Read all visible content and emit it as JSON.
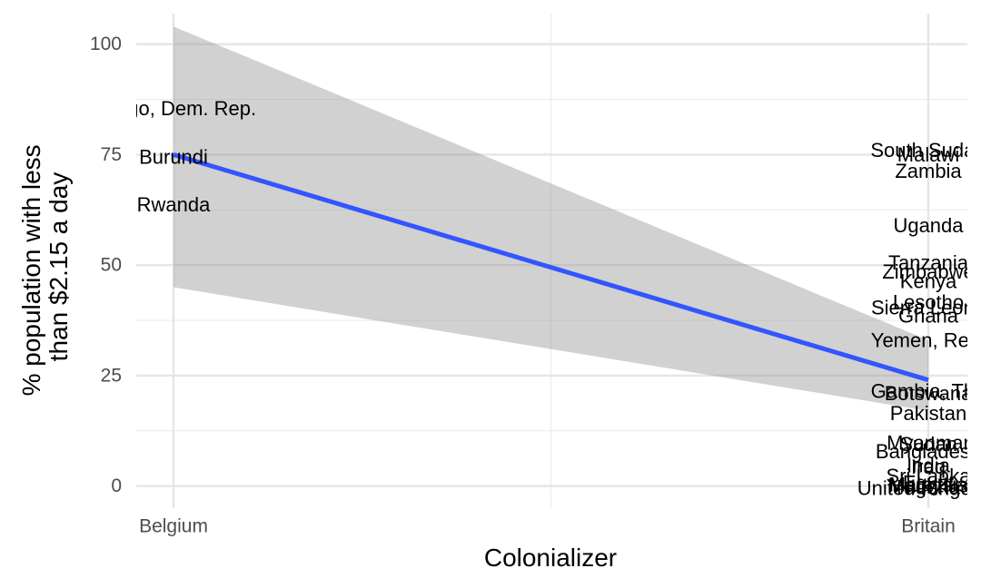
{
  "chart_data": {
    "type": "scatter",
    "title": "",
    "xlabel": "Colonializer",
    "ylabel_lines": [
      "% population with less",
      "than $2.15 a day"
    ],
    "categories": [
      "Belgium",
      "Britain"
    ],
    "ylim": [
      -5,
      110
    ],
    "yticks": [
      0,
      25,
      50,
      75,
      100
    ],
    "ytick_labels": [
      "0",
      "25",
      "50",
      "75",
      "100"
    ],
    "grid": true,
    "trend": {
      "color": "#3355ff",
      "fit": {
        "Belgium": 75,
        "Britain": 24
      },
      "band_lower": {
        "Belgium": 45,
        "Britain": 17
      },
      "band_upper": {
        "Belgium": 104,
        "Britain": 33
      }
    },
    "labels": [
      {
        "text": "Congo, Dem. Rep.",
        "x": "Belgium",
        "y": 85.5
      },
      {
        "text": "Burundi",
        "x": "Belgium",
        "y": 74.5
      },
      {
        "text": "Rwanda",
        "x": "Belgium",
        "y": 63.7
      },
      {
        "text": "South Sudan",
        "x": "Britain",
        "y": 76
      },
      {
        "text": "Malawi",
        "x": "Britain",
        "y": 75
      },
      {
        "text": "Zambia",
        "x": "Britain",
        "y": 71.3
      },
      {
        "text": "Uganda",
        "x": "Britain",
        "y": 59
      },
      {
        "text": "Tanzania",
        "x": "Britain",
        "y": 50.6
      },
      {
        "text": "Zimbabwe",
        "x": "Britain",
        "y": 48.5
      },
      {
        "text": "Kenya",
        "x": "Britain",
        "y": 46.3
      },
      {
        "text": "Lesotho",
        "x": "Britain",
        "y": 41.6
      },
      {
        "text": "Sierra Leone",
        "x": "Britain",
        "y": 40.4
      },
      {
        "text": "Ghana",
        "x": "Britain",
        "y": 38.5
      },
      {
        "text": "Yemen, Rep.",
        "x": "Britain",
        "y": 33
      },
      {
        "text": "Gambia, The",
        "x": "Britain",
        "y": 21.5
      },
      {
        "text": "Botswana",
        "x": "Britain",
        "y": 21
      },
      {
        "text": "Pakistan",
        "x": "Britain",
        "y": 16.5
      },
      {
        "text": "Myanmar",
        "x": "Britain",
        "y": 9.8
      },
      {
        "text": "Sudan",
        "x": "Britain",
        "y": 9.5
      },
      {
        "text": "Bangladesh",
        "x": "Britain",
        "y": 7.8
      },
      {
        "text": "India",
        "x": "Britain",
        "y": 4.7
      },
      {
        "text": "Iraq",
        "x": "Britain",
        "y": 4.3
      },
      {
        "text": "Sri Lanka",
        "x": "Britain",
        "y": 2.3
      },
      {
        "text": "Egypt",
        "x": "Britain",
        "y": 0.8
      },
      {
        "text": "Malaysia",
        "x": "Britain",
        "y": 0.3
      },
      {
        "text": "United Kingdom",
        "x": "Britain",
        "y": -0.5
      },
      {
        "text": "Mauritius",
        "x": "Britain",
        "y": 0.1
      },
      {
        "text": "Nigeria",
        "x": "Britain",
        "y": -0.3
      }
    ]
  }
}
